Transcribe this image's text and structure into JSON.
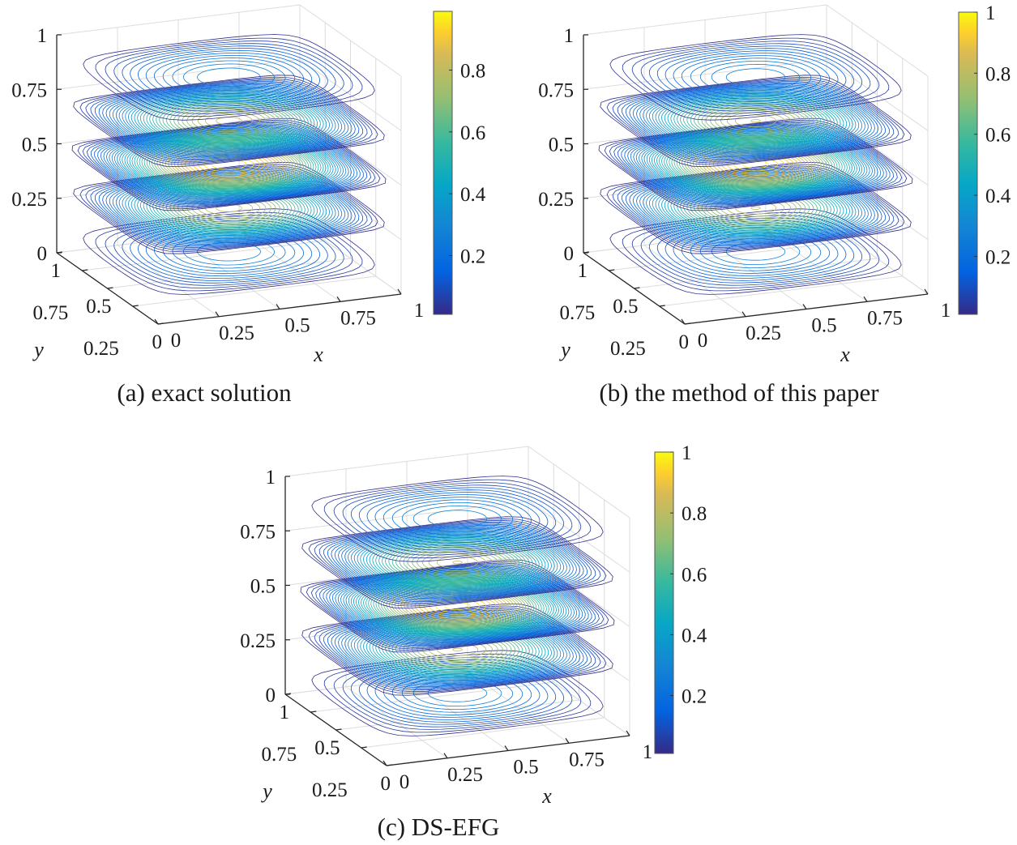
{
  "chart_data": [
    {
      "type": "contour-slices",
      "caption": "(a) exact solution",
      "xlabel": "x",
      "ylabel": "y",
      "xlim": [
        0,
        1
      ],
      "ylim": [
        0,
        1
      ],
      "zlim": [
        0,
        1
      ],
      "x_ticks": [
        "0",
        "0.25",
        "0.5",
        "0.75",
        "1"
      ],
      "y_ticks": [
        "0",
        "0.25",
        "0.5",
        "0.75",
        "1"
      ],
      "z_ticks": [
        "0",
        "0.25",
        "0.5",
        "0.75",
        "1"
      ],
      "slices_z": [
        0.1,
        0.3,
        0.5,
        0.7,
        0.9
      ],
      "slice_peak_values": [
        0.31,
        0.81,
        1.0,
        0.81,
        0.31
      ],
      "colorbar": {
        "colormap": "parula",
        "clim": [
          0.01,
          0.99
        ],
        "ticks": [
          "0.2",
          "0.4",
          "0.6",
          "0.8"
        ]
      },
      "grid": true
    },
    {
      "type": "contour-slices",
      "caption": "(b) the method of this paper",
      "xlabel": "x",
      "ylabel": "y",
      "xlim": [
        0,
        1
      ],
      "ylim": [
        0,
        1
      ],
      "zlim": [
        0,
        1
      ],
      "x_ticks": [
        "0",
        "0.25",
        "0.5",
        "0.75",
        "1"
      ],
      "y_ticks": [
        "0",
        "0.25",
        "0.5",
        "0.75",
        "1"
      ],
      "z_ticks": [
        "0",
        "0.25",
        "0.5",
        "0.75",
        "1"
      ],
      "slices_z": [
        0.1,
        0.3,
        0.5,
        0.7,
        0.9
      ],
      "slice_peak_values": [
        0.31,
        0.81,
        1.0,
        0.81,
        0.31
      ],
      "colorbar": {
        "colormap": "parula",
        "clim": [
          0.01,
          1.0
        ],
        "ticks": [
          "0.2",
          "0.4",
          "0.6",
          "0.8",
          "1"
        ]
      },
      "grid": true
    },
    {
      "type": "contour-slices",
      "caption": "(c) DS-EFG",
      "xlabel": "x",
      "ylabel": "y",
      "xlim": [
        0,
        1
      ],
      "ylim": [
        0,
        1
      ],
      "zlim": [
        0,
        1
      ],
      "x_ticks": [
        "0",
        "0.25",
        "0.5",
        "0.75",
        "1"
      ],
      "y_ticks": [
        "0",
        "0.25",
        "0.5",
        "0.75",
        "1"
      ],
      "z_ticks": [
        "0",
        "0.25",
        "0.5",
        "0.75",
        "1"
      ],
      "slices_z": [
        0.1,
        0.3,
        0.5,
        0.7,
        0.9
      ],
      "slice_peak_values": [
        0.31,
        0.81,
        1.0,
        0.81,
        0.31
      ],
      "colorbar": {
        "colormap": "parula",
        "clim": [
          0.01,
          1.0
        ],
        "ticks": [
          "0.2",
          "0.4",
          "0.6",
          "0.8",
          "1"
        ]
      },
      "grid": true
    }
  ],
  "colors": {
    "axis": "#262626",
    "grid": "#dcdcdc",
    "parula_low": "#352a87",
    "parula_high": "#f9fb0e"
  }
}
